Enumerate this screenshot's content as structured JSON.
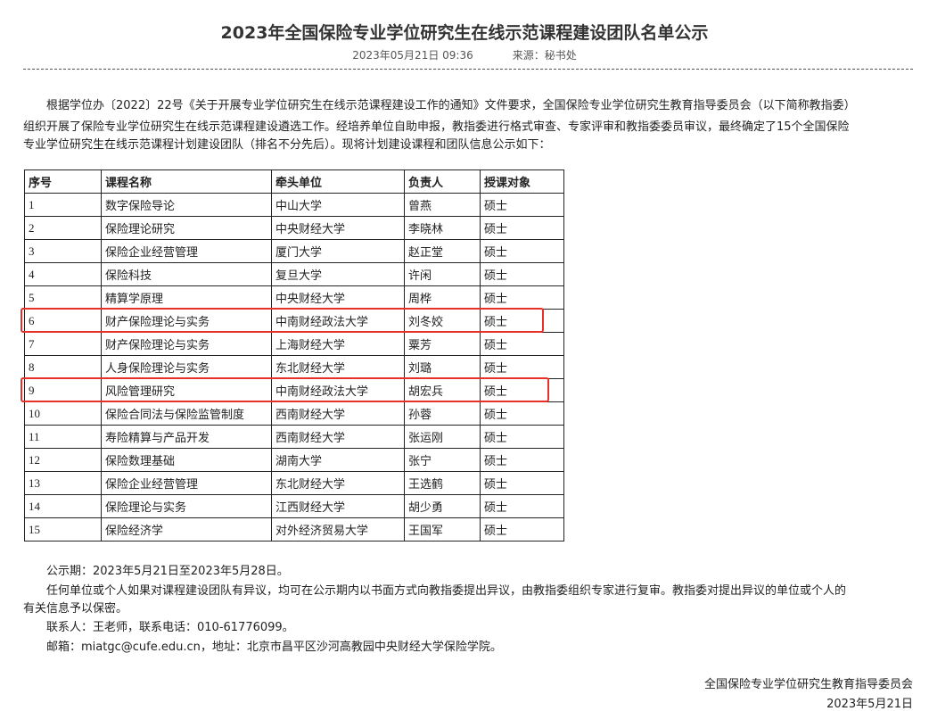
{
  "title": "2023年全国保险专业学位研究生在线示范课程建设团队名单公示",
  "meta": {
    "datetime": "2023年05月21日  09:36",
    "source": "来源：秘书处"
  },
  "intro": [
    "　　根据学位办〔2022〕22号《关于开展专业学位研究生在线示范课程建设工作的通知》文件要求，全国保险专业学位研究生教育指导委员会（以下简称教指委）",
    "组织开展了保险专业学位研究生在线示范课程建设遴选工作。经培养单位自助申报，教指委进行格式审查、专家评审和教指委委员审议，最终确定了15个全国保险",
    "专业学位研究生在线示范课程计划建设团队（排名不分先后）。现将计划建设课程和团队信息公示如下："
  ],
  "table": {
    "headers": [
      "序号",
      "课程名称",
      "牵头单位",
      "负责人",
      "授课对象"
    ],
    "rows": [
      [
        "1",
        "数字保险导论",
        "中山大学",
        "曾燕",
        "硕士"
      ],
      [
        "2",
        "保险理论研究",
        "中央财经大学",
        "李晓林",
        "硕士"
      ],
      [
        "3",
        "保险企业经营管理",
        "厦门大学",
        "赵正堂",
        "硕士"
      ],
      [
        "4",
        "保险科技",
        "复旦大学",
        "许闲",
        "硕士"
      ],
      [
        "5",
        "精算学原理",
        "中央财经大学",
        "周桦",
        "硕士"
      ],
      [
        "6",
        "财产保险理论与实务",
        "中南财经政法大学",
        "刘冬姣",
        "硕士"
      ],
      [
        "7",
        "财产保险理论与实务",
        "上海财经大学",
        "粟芳",
        "硕士"
      ],
      [
        "8",
        "人身保险理论与实务",
        "东北财经大学",
        "刘璐",
        "硕士"
      ],
      [
        "9",
        "风险管理研究",
        "中南财经政法大学",
        "胡宏兵",
        "硕士"
      ],
      [
        "10",
        "保险合同法与保险监管制度",
        "西南财经大学",
        "孙蓉",
        "硕士"
      ],
      [
        "11",
        "寿险精算与产品开发",
        "西南财经大学",
        "张运刚",
        "硕士"
      ],
      [
        "12",
        "保险数理基础",
        "湖南大学",
        "张宁",
        "硕士"
      ],
      [
        "13",
        "保险企业经营管理",
        "东北财经大学",
        "王选鹤",
        "硕士"
      ],
      [
        "14",
        "保险理论与实务",
        "江西财经大学",
        "胡少勇",
        "硕士"
      ],
      [
        "15",
        "保险经济学",
        "对外经济贸易大学",
        "王国军",
        "硕士"
      ]
    ]
  },
  "highlight_color": "#e8302a",
  "notes": {
    "period": "公示期：2023年5月21日至2023年5月28日。",
    "objection_1": "任何单位或个人如果对课程建设团队有异议，均可在公示期内以书面方式向教指委提出异议，由教指委组织专家进行复审。教指委对提出异议的单位或个人的",
    "objection_2": "有关信息予以保密。",
    "contact": "联系人：王老师，联系电话：010-61776099。",
    "email": "邮箱：miatgc@cufe.edu.cn，地址：北京市昌平区沙河高教园中央财经大学保险学院。"
  },
  "signature": {
    "org": "全国保险专业学位研究生教育指导委员会",
    "date": "2023年5月21日"
  }
}
